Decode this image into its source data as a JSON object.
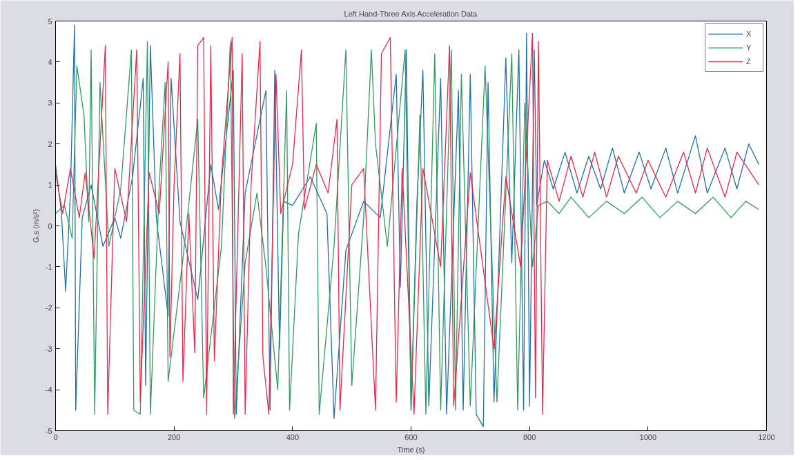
{
  "chart_data": {
    "type": "line",
    "title": "Left Hand-Three Axis Acceleration Data",
    "xlabel": "Time (s)",
    "ylabel": "G.s (m/s²)",
    "xlim": [
      0,
      1200
    ],
    "ylim": [
      -5,
      5
    ],
    "xticks": [
      0,
      200,
      400,
      600,
      800,
      1000,
      1200
    ],
    "yticks": [
      -5,
      -4,
      -3,
      -2,
      -1,
      0,
      1,
      2,
      3,
      4,
      5
    ],
    "grid": false,
    "legend": "top right",
    "marker": "none",
    "line_style": "solid",
    "series": [
      {
        "name": "X",
        "color": "#1f6fa8",
        "x": [
          0,
          10,
          17,
          25,
          32,
          34,
          45,
          60,
          80,
          100,
          110,
          130,
          148,
          152,
          160,
          170,
          190,
          195,
          210,
          240,
          262,
          275,
          300,
          305,
          320,
          355,
          362,
          370,
          378,
          385,
          400,
          430,
          458,
          470,
          490,
          520,
          548,
          575,
          582,
          592,
          600,
          610,
          620,
          630,
          650,
          660,
          680,
          688,
          700,
          710,
          722,
          730,
          740,
          760,
          770,
          782,
          790,
          795,
          800,
          808,
          812,
          825,
          840,
          860,
          880,
          900,
          920,
          940,
          960,
          985,
          1005,
          1030,
          1050,
          1080,
          1100,
          1130,
          1150,
          1170,
          1187
        ],
        "values": [
          1.5,
          0.3,
          -1.6,
          0.8,
          4.9,
          -4.5,
          0.2,
          1.0,
          -0.5,
          0.2,
          -0.3,
          1.2,
          3.6,
          -3.9,
          4.4,
          0.2,
          -2.2,
          3.6,
          0.1,
          -1.8,
          1.5,
          0.4,
          3.8,
          -4.6,
          0.8,
          3.3,
          -4.5,
          3.8,
          -3.0,
          0.6,
          0.5,
          1.2,
          0.3,
          -4.7,
          -0.6,
          0.6,
          0.2,
          3.7,
          -1.5,
          4.3,
          -4.5,
          0.6,
          3.8,
          -4.4,
          3.6,
          -4.6,
          3.3,
          -4.5,
          3.7,
          -4.6,
          -4.9,
          3.5,
          -4.3,
          4.1,
          -0.9,
          4.3,
          -4.5,
          4.7,
          -4.4,
          4.3,
          0.5,
          1.6,
          0.9,
          1.8,
          0.8,
          1.7,
          0.9,
          1.9,
          0.8,
          1.8,
          0.9,
          1.9,
          0.8,
          2.2,
          0.8,
          1.9,
          0.9,
          2.0,
          1.5
        ]
      },
      {
        "name": "Y",
        "color": "#2e9a5e",
        "x": [
          0,
          15,
          28,
          36,
          48,
          56,
          60,
          66,
          75,
          90,
          110,
          128,
          132,
          143,
          155,
          160,
          175,
          185,
          190,
          215,
          240,
          250,
          280,
          295,
          302,
          320,
          340,
          355,
          375,
          390,
          395,
          410,
          440,
          445,
          470,
          490,
          500,
          520,
          533,
          540,
          560,
          590,
          600,
          615,
          625,
          640,
          650,
          668,
          675,
          685,
          700,
          725,
          745,
          770,
          780,
          792,
          805,
          815,
          830,
          850,
          870,
          900,
          930,
          960,
          990,
          1020,
          1050,
          1080,
          1110,
          1140,
          1165,
          1187
        ],
        "values": [
          0.3,
          0.5,
          -0.3,
          3.9,
          2.7,
          0.1,
          4.3,
          -4.6,
          3.5,
          -0.5,
          0.9,
          4.3,
          -4.5,
          -4.6,
          4.5,
          -4.6,
          1.0,
          3.5,
          -3.8,
          -0.8,
          2.6,
          -4.2,
          -0.5,
          4.5,
          -4.7,
          -0.9,
          0.8,
          -1.0,
          -4.0,
          3.3,
          -4.5,
          -0.2,
          2.5,
          -4.6,
          -0.5,
          4.3,
          -3.9,
          0.2,
          4.3,
          2.0,
          -0.5,
          4.3,
          -4.5,
          2.7,
          -4.6,
          4.2,
          -4.5,
          4.3,
          -4.5,
          3.7,
          -4.4,
          3.9,
          -4.3,
          4.2,
          -4.5,
          3.0,
          -1.0,
          0.5,
          0.6,
          0.3,
          0.7,
          0.2,
          0.6,
          0.3,
          0.7,
          0.2,
          0.6,
          0.3,
          0.7,
          0.2,
          0.6,
          0.4
        ]
      },
      {
        "name": "Z",
        "color": "#e8274a",
        "x": [
          0,
          12,
          25,
          40,
          50,
          65,
          84,
          88,
          100,
          120,
          137,
          143,
          158,
          175,
          190,
          193,
          200,
          210,
          215,
          225,
          235,
          240,
          250,
          255,
          262,
          268,
          280,
          298,
          300,
          315,
          320,
          330,
          345,
          350,
          360,
          372,
          380,
          400,
          415,
          420,
          440,
          460,
          475,
          480,
          500,
          520,
          540,
          550,
          565,
          575,
          585,
          605,
          620,
          650,
          665,
          672,
          700,
          740,
          760,
          785,
          805,
          810,
          815,
          822,
          830,
          850,
          870,
          890,
          910,
          930,
          950,
          980,
          1000,
          1030,
          1060,
          1080,
          1100,
          1130,
          1150,
          1187
        ],
        "values": [
          1.3,
          0.3,
          1.4,
          0.2,
          1.3,
          -0.8,
          4.4,
          -4.6,
          1.4,
          0.1,
          4.3,
          -4.3,
          1.3,
          0.3,
          4.0,
          -3.2,
          1.0,
          4.2,
          -3.8,
          0.3,
          -3.1,
          4.4,
          4.6,
          -4.6,
          4.4,
          -3.3,
          1.2,
          4.6,
          -4.6,
          4.2,
          -4.6,
          1.0,
          4.5,
          -3.2,
          -4.6,
          3.7,
          0.3,
          1.5,
          4.3,
          0.4,
          1.5,
          0.8,
          2.6,
          -4.5,
          1.0,
          1.4,
          -4.5,
          4.2,
          4.6,
          -4.3,
          1.4,
          -4.6,
          1.4,
          -1.0,
          4.4,
          -4.4,
          1.3,
          -3.0,
          1.2,
          -1.0,
          4.7,
          -4.2,
          4.5,
          -4.6,
          1.6,
          0.6,
          1.7,
          0.7,
          1.8,
          0.7,
          1.7,
          0.8,
          1.6,
          0.7,
          1.8,
          0.8,
          1.9,
          0.7,
          1.8,
          1.0
        ]
      }
    ]
  }
}
